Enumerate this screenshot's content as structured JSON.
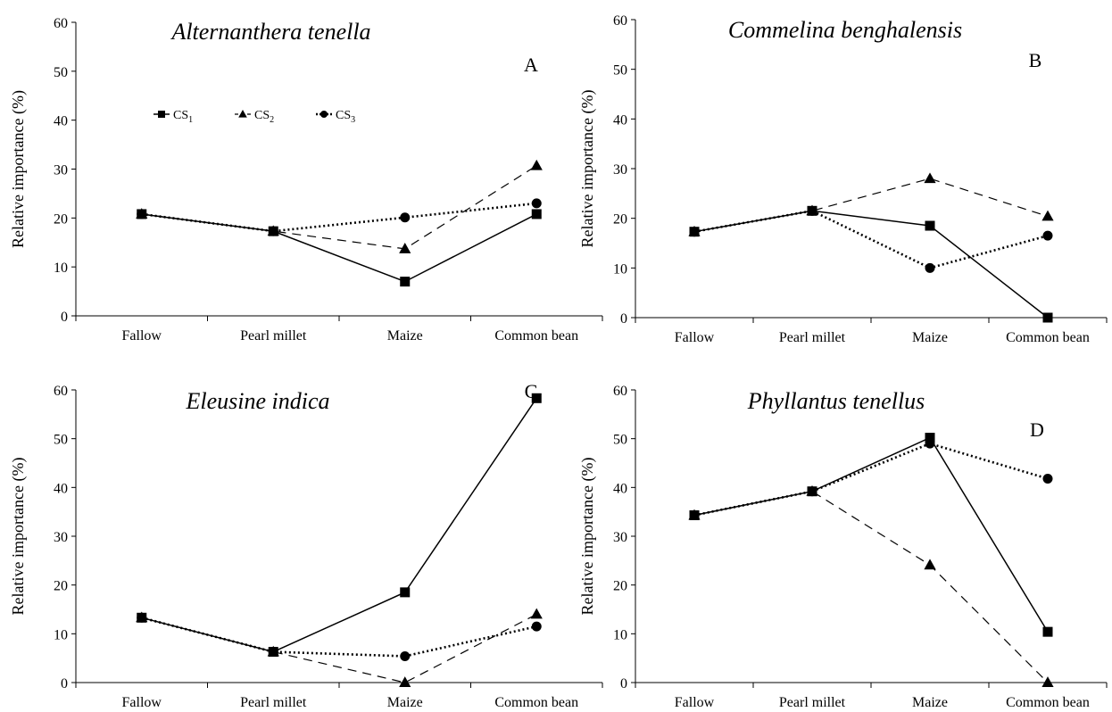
{
  "chart_data": [
    {
      "type": "line",
      "title": "Alternanthera tenella",
      "panel_label": "A",
      "ylabel": "Relative importance (%)",
      "xlabel": "",
      "ylim": [
        0,
        60
      ],
      "yticks": [
        0,
        10,
        20,
        30,
        40,
        50,
        60
      ],
      "grid": false,
      "legend": {
        "placement": "top-left",
        "entries": [
          {
            "base": "CS",
            "sub": "1"
          },
          {
            "base": "CS",
            "sub": "2"
          },
          {
            "base": "CS",
            "sub": "3"
          }
        ]
      },
      "categories": [
        "Fallow",
        "Pearl millet",
        "Maize",
        "Common bean"
      ],
      "series": [
        {
          "key": "CS1",
          "values": [
            20.8,
            17.3,
            7.0,
            20.8
          ]
        },
        {
          "key": "CS2",
          "values": [
            20.8,
            17.3,
            13.7,
            30.7
          ]
        },
        {
          "key": "CS3",
          "values": [
            20.8,
            17.3,
            20.1,
            23.0
          ]
        }
      ]
    },
    {
      "type": "line",
      "title": "Commelina benghalensis",
      "panel_label": "B",
      "ylabel": "Relative importance (%)",
      "xlabel": "",
      "ylim": [
        0,
        60
      ],
      "yticks": [
        0,
        10,
        20,
        30,
        40,
        50,
        60
      ],
      "grid": false,
      "categories": [
        "Fallow",
        "Pearl millet",
        "Maize",
        "Common bean"
      ],
      "series": [
        {
          "key": "CS1",
          "values": [
            17.3,
            21.5,
            18.5,
            0.0
          ]
        },
        {
          "key": "CS2",
          "values": [
            17.3,
            21.5,
            28.0,
            20.4
          ]
        },
        {
          "key": "CS3",
          "values": [
            17.3,
            21.5,
            10.0,
            16.5
          ]
        }
      ]
    },
    {
      "type": "line",
      "title": "Eleusine indica",
      "panel_label": "C",
      "ylabel": "Relative importance (%)",
      "xlabel": "",
      "ylim": [
        0,
        60
      ],
      "yticks": [
        0,
        10,
        20,
        30,
        40,
        50,
        60
      ],
      "grid": false,
      "categories": [
        "Fallow",
        "Pearl millet",
        "Maize",
        "Common bean"
      ],
      "series": [
        {
          "key": "CS1",
          "values": [
            13.3,
            6.3,
            18.5,
            58.3
          ]
        },
        {
          "key": "CS2",
          "values": [
            13.3,
            6.3,
            0.0,
            14.0
          ]
        },
        {
          "key": "CS3",
          "values": [
            13.3,
            6.3,
            5.4,
            11.5
          ]
        }
      ]
    },
    {
      "type": "line",
      "title": "Phyllantus tenellus",
      "panel_label": "D",
      "ylabel": "Relative importance (%)",
      "xlabel": "",
      "ylim": [
        0,
        60
      ],
      "yticks": [
        0,
        10,
        20,
        30,
        40,
        50,
        60
      ],
      "grid": false,
      "categories": [
        "Fallow",
        "Pearl millet",
        "Maize",
        "Common bean"
      ],
      "series": [
        {
          "key": "CS1",
          "values": [
            34.3,
            39.2,
            50.2,
            10.4
          ]
        },
        {
          "key": "CS2",
          "values": [
            34.3,
            39.2,
            24.1,
            0.0
          ]
        },
        {
          "key": "CS3",
          "values": [
            34.3,
            39.2,
            49.0,
            41.8
          ]
        }
      ]
    }
  ]
}
